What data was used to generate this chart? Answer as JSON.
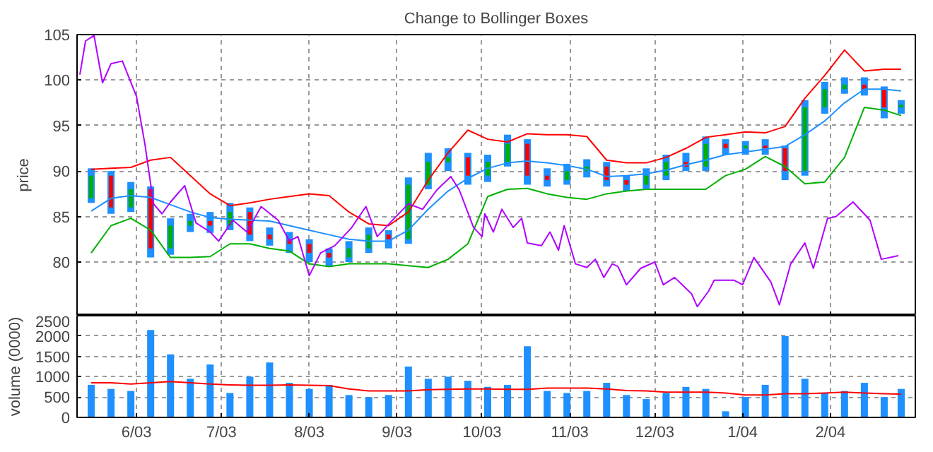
{
  "chart_data": [
    {
      "type": "candlestick",
      "title": "Change to Bollinger Boxes",
      "ylabel": "price",
      "tick_labels": "y",
      "grid": true,
      "xlim": [
        "2003-05-11",
        "2004-03-02"
      ],
      "xticks": [
        {
          "value": "2003-06-01",
          "label": null
        },
        {
          "value": "2003-07-01",
          "label": null
        },
        {
          "value": "2003-08-01",
          "label": null
        },
        {
          "value": "2003-09-01",
          "label": null
        },
        {
          "value": "2003-10-01",
          "label": null
        },
        {
          "value": "2003-11-01",
          "label": null
        },
        {
          "value": "2003-12-01",
          "label": null
        },
        {
          "value": "2004-01-01",
          "label": null
        },
        {
          "value": "2004-02-01",
          "label": null
        }
      ],
      "ylim": [
        74.1,
        105
      ],
      "yticks": [
        80,
        85,
        90,
        95,
        100,
        105
      ],
      "x": [
        "2003-05-16",
        "2003-05-23",
        "2003-05-30",
        "2003-06-06",
        "2003-06-13",
        "2003-06-20",
        "2003-06-27",
        "2003-07-04",
        "2003-07-11",
        "2003-07-18",
        "2003-07-25",
        "2003-08-01",
        "2003-08-08",
        "2003-08-15",
        "2003-08-22",
        "2003-08-29",
        "2003-09-05",
        "2003-09-12",
        "2003-09-19",
        "2003-09-26",
        "2003-10-03",
        "2003-10-10",
        "2003-10-17",
        "2003-10-24",
        "2003-10-31",
        "2003-11-07",
        "2003-11-14",
        "2003-11-21",
        "2003-11-28",
        "2003-12-05",
        "2003-12-12",
        "2003-12-19",
        "2003-12-26",
        "2004-01-02",
        "2004-01-09",
        "2004-01-16",
        "2004-01-23",
        "2004-01-30",
        "2004-02-06",
        "2004-02-13",
        "2004-02-20",
        "2004-02-26"
      ],
      "ohlc": [
        [
          87,
          90.3,
          86.5,
          89.5
        ],
        [
          89.5,
          90,
          85.3,
          86
        ],
        [
          86,
          88.8,
          85.5,
          88
        ],
        [
          88,
          88.3,
          80.5,
          81.5
        ],
        [
          81.5,
          84.8,
          80.8,
          84
        ],
        [
          84,
          85.3,
          83.3,
          84.5
        ],
        [
          84.5,
          85.5,
          83.2,
          84
        ],
        [
          84,
          86.5,
          83.5,
          85.5
        ],
        [
          85.5,
          86,
          82.3,
          83
        ],
        [
          83,
          83.8,
          81.8,
          82.5
        ],
        [
          82.5,
          83.3,
          81,
          82
        ],
        [
          82,
          82.5,
          80,
          81
        ],
        [
          81,
          81.5,
          79.5,
          80.5
        ],
        [
          80.5,
          82.3,
          80,
          81.5
        ],
        [
          81.5,
          83.8,
          81,
          83
        ],
        [
          83,
          83.5,
          81.5,
          82.5
        ],
        [
          82.5,
          89.3,
          82,
          88.5
        ],
        [
          88.5,
          92,
          88,
          91
        ],
        [
          91,
          92.5,
          90,
          91.5
        ],
        [
          91.5,
          92,
          88.5,
          89.5
        ],
        [
          89.5,
          91.8,
          88.8,
          91
        ],
        [
          91,
          94,
          90.5,
          93
        ],
        [
          93,
          93.5,
          88.5,
          89.5
        ],
        [
          89.5,
          90.3,
          88.3,
          89
        ],
        [
          89,
          90.8,
          88.5,
          90
        ],
        [
          90,
          91.3,
          89.3,
          90.5
        ],
        [
          90.5,
          91,
          88.3,
          89
        ],
        [
          89,
          89.5,
          87.8,
          88.5
        ],
        [
          88.5,
          90.3,
          88,
          89.5
        ],
        [
          89.5,
          91.8,
          89,
          91
        ],
        [
          91,
          92,
          90,
          90.5
        ],
        [
          90.5,
          93.8,
          90,
          93
        ],
        [
          93,
          93.5,
          91.8,
          92.5
        ],
        [
          92.5,
          93.3,
          91.8,
          92.8
        ],
        [
          92.8,
          93.5,
          91.8,
          92.5
        ],
        [
          92.5,
          92.8,
          89,
          90
        ],
        [
          90,
          97.8,
          89.5,
          97
        ],
        [
          97,
          99.8,
          96.3,
          99
        ],
        [
          99,
          100.3,
          98.5,
          99.5
        ],
        [
          99.5,
          100.3,
          98.3,
          99
        ],
        [
          99,
          99.3,
          95.8,
          97
        ],
        [
          97,
          97.8,
          96.3,
          97.3
        ]
      ],
      "color": "#1e90ff",
      "colors": [
        "#00b000",
        "#ff0000",
        "#00b000",
        "#ff0000",
        "#00b000",
        "#00b000",
        "#ff0000",
        "#00b000",
        "#ff0000",
        "#ff0000",
        "#ff0000",
        "#ff0000",
        "#ff0000",
        "#00b000",
        "#00b000",
        "#ff0000",
        "#00b000",
        "#00b000",
        "#00b000",
        "#ff0000",
        "#00b000",
        "#00b000",
        "#ff0000",
        "#ff0000",
        "#00b000",
        "#00b000",
        "#ff0000",
        "#ff0000",
        "#00b000",
        "#00b000",
        "#ff0000",
        "#00b000",
        "#ff0000",
        "#00b000",
        "#ff0000",
        "#ff0000",
        "#00b000",
        "#00b000",
        "#00b000",
        "#ff0000",
        "#ff0000",
        "#00b000"
      ],
      "series": [
        {
          "type": "line",
          "color": "#ff0000",
          "values": [
            90.2,
            90.3,
            90.4,
            91.2,
            91.5,
            89.5,
            87.5,
            86.2,
            86.5,
            86.9,
            87.2,
            87.5,
            87.3,
            85.5,
            84.2,
            84,
            85.5,
            89,
            92,
            94.5,
            93.5,
            93.2,
            94.1,
            94,
            94,
            93.8,
            91.2,
            90.9,
            90.9,
            91.5,
            92.5,
            93.7,
            94,
            94.3,
            94.2,
            94.9,
            98,
            100.5,
            103.3,
            101,
            101.2,
            101.2
          ]
        },
        {
          "type": "line",
          "color": "#1e90ff",
          "values": [
            85.6,
            87,
            87.3,
            87.1,
            86.3,
            85.5,
            84.9,
            84.7,
            84.6,
            84.5,
            84,
            83.5,
            83,
            82.5,
            82.3,
            82.3,
            83.5,
            85.8,
            87.8,
            89.2,
            90.3,
            90.9,
            91.1,
            90.9,
            90.6,
            90.2,
            89.4,
            89.5,
            89.7,
            90.1,
            90.7,
            91.2,
            91.8,
            92.1,
            92.4,
            92.7,
            94,
            95.5,
            97.5,
            99,
            99,
            98.8
          ]
        },
        {
          "type": "line",
          "color": "#00b000",
          "values": [
            81,
            84,
            84.8,
            83.5,
            80.5,
            80.5,
            80.6,
            82,
            82,
            81.5,
            81.2,
            79.8,
            79.5,
            79.8,
            79.8,
            79.8,
            79.6,
            79.4,
            80.3,
            82,
            87.2,
            88,
            88.1,
            87.5,
            87.1,
            86.9,
            87.5,
            87.8,
            88,
            88,
            88,
            88,
            89.5,
            90.2,
            91.6,
            90.5,
            88.6,
            88.8,
            91.5,
            97,
            96.7,
            96.1
          ]
        },
        {
          "type": "line",
          "color": "#b000ff",
          "x": [
            "2003-05-12",
            "2003-05-14",
            "2003-05-17",
            "2003-05-20",
            "2003-05-23",
            "2003-05-27",
            "2003-06-01",
            "2003-06-04",
            "2003-06-07",
            "2003-06-10",
            "2003-06-13",
            "2003-06-18",
            "2003-06-22",
            "2003-06-27",
            "2003-06-30",
            "2003-07-05",
            "2003-07-10",
            "2003-07-15",
            "2003-07-21",
            "2003-07-25",
            "2003-07-28",
            "2003-08-01",
            "2003-08-05",
            "2003-08-10",
            "2003-08-16",
            "2003-08-21",
            "2003-08-25",
            "2003-08-31",
            "2003-09-05",
            "2003-09-10",
            "2003-09-15",
            "2003-09-20",
            "2003-09-23",
            "2003-09-28",
            "2003-10-01",
            "2003-10-02",
            "2003-10-05",
            "2003-10-08",
            "2003-10-12",
            "2003-10-15",
            "2003-10-17",
            "2003-10-22",
            "2003-10-25",
            "2003-10-28",
            "2003-10-30",
            "2003-11-03",
            "2003-11-07",
            "2003-11-10",
            "2003-11-13",
            "2003-11-16",
            "2003-11-18",
            "2003-11-21",
            "2003-11-26",
            "2003-12-01",
            "2003-12-04",
            "2003-12-08",
            "2003-12-14",
            "2003-12-16",
            "2003-12-20",
            "2003-12-22",
            "2003-12-29",
            "2004-01-01",
            "2004-01-05",
            "2004-01-11",
            "2004-01-14",
            "2004-01-18",
            "2004-01-23",
            "2004-01-26",
            "2004-01-31",
            "2004-02-03",
            "2004-02-09",
            "2004-02-15",
            "2004-02-19",
            "2004-02-25"
          ],
          "values": [
            100.6,
            104.3,
            104.9,
            99.7,
            101.8,
            102.1,
            98.2,
            92.9,
            86.4,
            85.3,
            86.6,
            88.4,
            84.3,
            83.3,
            82.3,
            84.6,
            83.3,
            86.1,
            84.6,
            82.3,
            82.8,
            78.5,
            81.0,
            81.8,
            83.8,
            86.1,
            82.8,
            84.8,
            86.4,
            85.8,
            87.9,
            89.4,
            87.9,
            83.8,
            82.8,
            85.3,
            83.3,
            85.8,
            83.8,
            84.8,
            82.1,
            81.8,
            83.3,
            81.3,
            84,
            79.8,
            79.4,
            80.3,
            78.3,
            79.8,
            79.5,
            77.5,
            79.3,
            80,
            77.5,
            78.3,
            76.5,
            75.1,
            76.8,
            78,
            78,
            77.5,
            80.5,
            77.8,
            75.3,
            79.8,
            82.1,
            79.3,
            84.8,
            85,
            86.6,
            84.6,
            80.3,
            80.7
          ]
        }
      ]
    },
    {
      "type": "bar",
      "ylabel": "volume (0000)",
      "grid": true,
      "xlim": [
        "2003-05-11",
        "2004-03-02"
      ],
      "xticks": [
        {
          "value": "2003-06-01",
          "label": "6/03"
        },
        {
          "value": "2003-07-01",
          "label": "7/03"
        },
        {
          "value": "2003-08-01",
          "label": "8/03"
        },
        {
          "value": "2003-09-01",
          "label": "9/03"
        },
        {
          "value": "2003-10-01",
          "label": "10/03"
        },
        {
          "value": "2003-11-01",
          "label": "11/03"
        },
        {
          "value": "2003-12-01",
          "label": "12/03"
        },
        {
          "value": "2004-01-01",
          "label": "1/04"
        },
        {
          "value": "2004-02-01",
          "label": "2/04"
        }
      ],
      "ylim": [
        0,
        2500
      ],
      "yticks": [
        0,
        500,
        1000,
        1500,
        2000,
        2500
      ],
      "x": [
        "2003-05-16",
        "2003-05-23",
        "2003-05-30",
        "2003-06-06",
        "2003-06-13",
        "2003-06-20",
        "2003-06-27",
        "2003-07-04",
        "2003-07-11",
        "2003-07-18",
        "2003-07-25",
        "2003-08-01",
        "2003-08-08",
        "2003-08-15",
        "2003-08-22",
        "2003-08-29",
        "2003-09-05",
        "2003-09-12",
        "2003-09-19",
        "2003-09-26",
        "2003-10-03",
        "2003-10-10",
        "2003-10-17",
        "2003-10-24",
        "2003-10-31",
        "2003-11-07",
        "2003-11-14",
        "2003-11-21",
        "2003-11-28",
        "2003-12-05",
        "2003-12-12",
        "2003-12-19",
        "2003-12-26",
        "2004-01-02",
        "2004-01-09",
        "2004-01-16",
        "2004-01-23",
        "2004-01-30",
        "2004-02-06",
        "2004-02-13",
        "2004-02-20",
        "2004-02-26"
      ],
      "series": [
        {
          "type": "bar",
          "color": "#1e90ff",
          "values": [
            800,
            700,
            650,
            2150,
            1550,
            950,
            1300,
            600,
            1000,
            1350,
            850,
            700,
            800,
            550,
            500,
            550,
            1250,
            950,
            1000,
            900,
            750,
            800,
            1750,
            650,
            600,
            650,
            850,
            550,
            450,
            600,
            750,
            700,
            150,
            500,
            800,
            2000,
            950,
            600,
            650,
            850,
            500,
            700
          ]
        },
        {
          "type": "line",
          "color": "#ff0000",
          "values": [
            850,
            850,
            820,
            850,
            880,
            850,
            820,
            800,
            790,
            790,
            800,
            790,
            780,
            700,
            650,
            650,
            650,
            680,
            690,
            700,
            700,
            690,
            690,
            720,
            720,
            720,
            700,
            660,
            650,
            620,
            620,
            620,
            600,
            550,
            550,
            580,
            580,
            600,
            620,
            600,
            580,
            570
          ]
        }
      ]
    }
  ]
}
